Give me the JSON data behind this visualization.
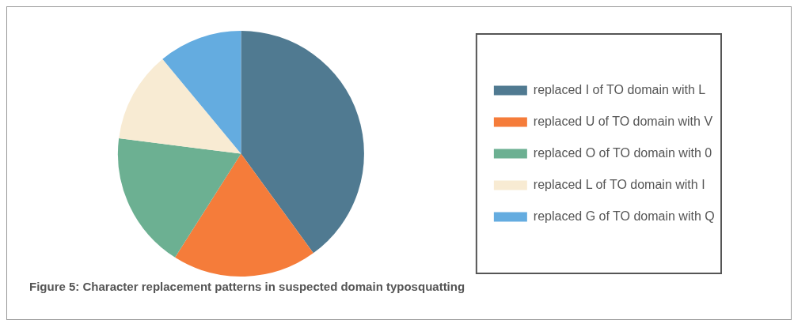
{
  "chart_data": {
    "type": "pie",
    "categories": [
      "replaced I of TO domain with L",
      "replaced U of TO domain with V",
      "replaced O of TO domain with 0",
      "replaced L of TO domain with I",
      "replaced G of TO domain with Q"
    ],
    "values": [
      40,
      19,
      18,
      12,
      11
    ],
    "colors": [
      "#507a91",
      "#f57c3a",
      "#6cb092",
      "#f8ebd3",
      "#64ace0"
    ],
    "legend": "right",
    "annotations": [
      "Figure 5: Character replacement patterns in suspected domain typosquatting"
    ]
  }
}
